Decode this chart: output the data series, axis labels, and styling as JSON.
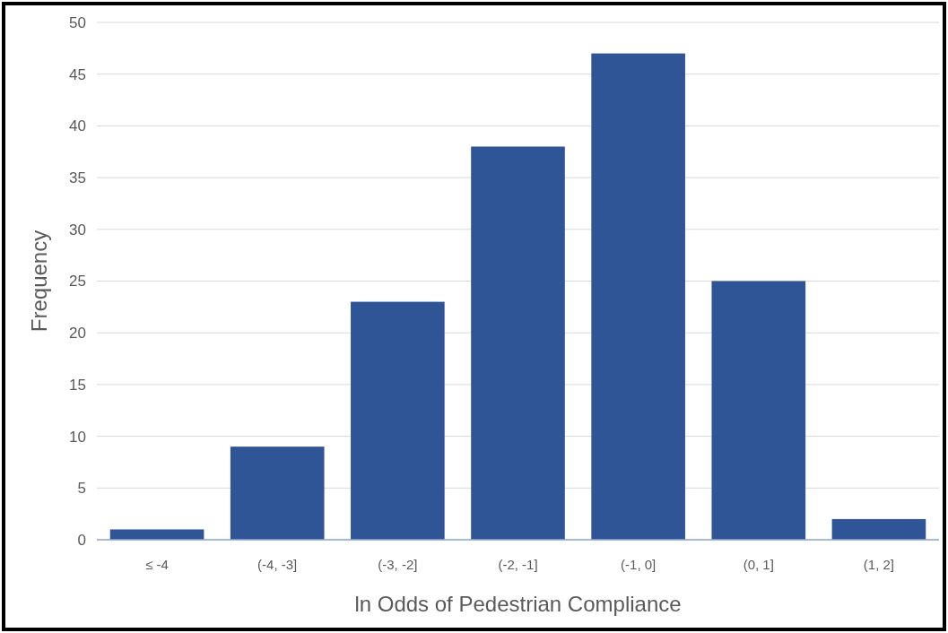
{
  "chart_data": {
    "type": "bar",
    "xlabel": "ln Odds of Pedestrian Compliance",
    "ylabel": "Frequency",
    "categories": [
      "≤ -4",
      "(-4, -3]",
      "(-3, -2]",
      "(-2, -1]",
      "(-1, 0]",
      "(0, 1]",
      "(1, 2]"
    ],
    "values": [
      1,
      9,
      23,
      38,
      47,
      25,
      2
    ],
    "color": "#2f5597",
    "ylim": [
      0,
      50
    ],
    "yticks": [
      0,
      5,
      10,
      15,
      20,
      25,
      30,
      35,
      40,
      45,
      50
    ],
    "grid": "y"
  }
}
